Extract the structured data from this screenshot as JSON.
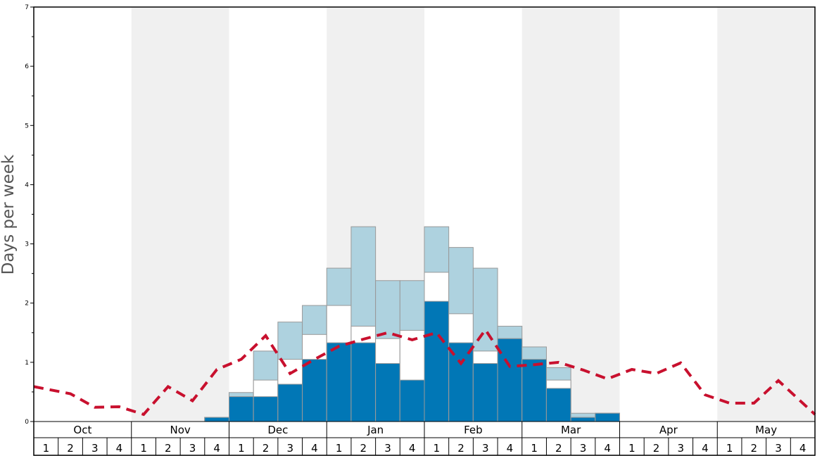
{
  "chart_data": {
    "type": "bar",
    "ylabel": "Days per week",
    "ylim": [
      0,
      7
    ],
    "yticks": [
      "0",
      "1",
      "2",
      "3",
      "4",
      "5",
      "6",
      "7"
    ],
    "months": [
      "Oct",
      "Nov",
      "Dec",
      "Jan",
      "Feb",
      "Mar",
      "Apr",
      "May"
    ],
    "week_labels": [
      "1",
      "2",
      "3",
      "4"
    ],
    "colors": {
      "dark": "#0177b6",
      "middle": "#ffffff",
      "light": "#aed2df",
      "line": "#c8102e",
      "shade": "#f0f0f0"
    },
    "series": [
      {
        "values": [
          0,
          0,
          0,
          0,
          0,
          0,
          0,
          0.07,
          0.42,
          0.42,
          0.63,
          1.05,
          1.33,
          1.33,
          0.98,
          0.7,
          2.03,
          1.33,
          0.98,
          1.4,
          1.05,
          0.56,
          0.07,
          0.14,
          0,
          0,
          0,
          0,
          0,
          0,
          0,
          0
        ]
      },
      {
        "values": [
          0,
          0,
          0,
          0,
          0,
          0,
          0,
          0.07,
          0.42,
          0.7,
          1.05,
          1.47,
          1.96,
          1.61,
          1.4,
          1.54,
          2.52,
          1.82,
          1.19,
          1.4,
          1.05,
          0.7,
          0.07,
          0.14,
          0,
          0,
          0,
          0,
          0,
          0,
          0,
          0
        ]
      },
      {
        "values": [
          0,
          0,
          0,
          0,
          0,
          0,
          0,
          0.07,
          0.49,
          1.19,
          1.68,
          1.96,
          2.59,
          3.29,
          2.38,
          2.38,
          3.29,
          2.94,
          2.59,
          1.61,
          1.26,
          0.91,
          0.14,
          0.14,
          0,
          0,
          0,
          0,
          0,
          0,
          0,
          0
        ]
      },
      {
        "values": [
          0.59,
          0.47,
          0.24,
          0.25,
          0.12,
          0.59,
          0.35,
          0.88,
          1.05,
          1.45,
          0.81,
          1.05,
          1.27,
          1.39,
          1.5,
          1.38,
          1.5,
          0.98,
          1.55,
          0.93,
          0.96,
          1.0,
          0.87,
          0.72,
          0.88,
          0.81,
          0.99,
          0.45,
          0.31,
          0.31,
          0.69,
          0.12
        ]
      }
    ]
  }
}
